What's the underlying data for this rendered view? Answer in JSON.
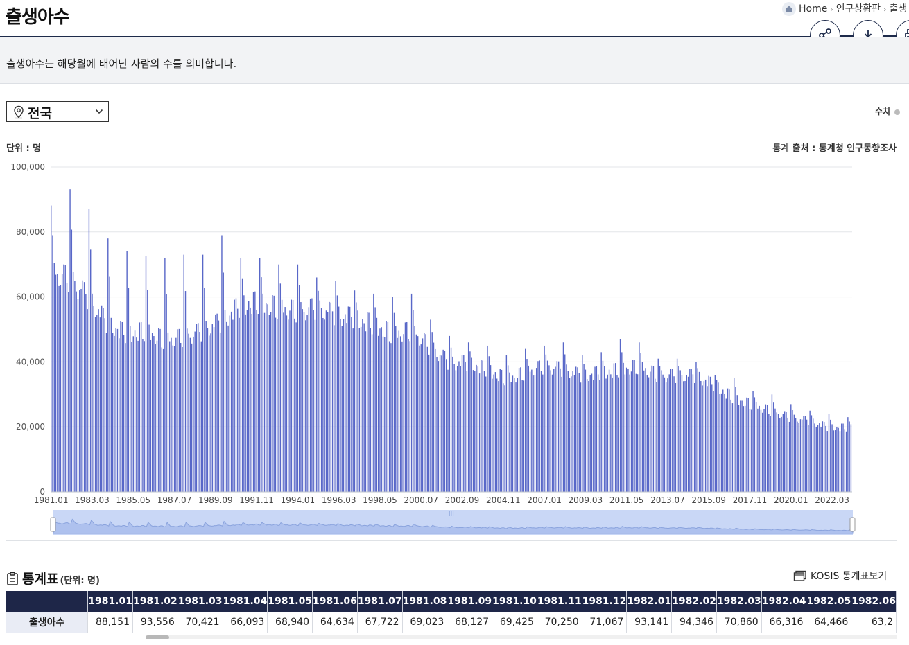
{
  "header": {
    "title": "출생아수",
    "breadcrumb": {
      "home": "Home",
      "level1": "인구상황판",
      "level2": "출생"
    }
  },
  "description": "출생아수는 해당월에 태어난 사람의 수를 의미합니다.",
  "region_select": {
    "value": "전국"
  },
  "view_toggle": {
    "label": "수치"
  },
  "unit_label": "단위 : 명",
  "source_label": "통계 출처 : 통계청 인구동향조사",
  "colors": {
    "bar": "#5867c8",
    "navy": "#1e2648",
    "navigator": "#c9d7f6"
  },
  "chart_data": {
    "type": "bar",
    "x_start": "1981.01",
    "x_end": "2023.03",
    "ylim": [
      0,
      100000
    ],
    "ytick_labels": [
      "0",
      "20,000",
      "40,000",
      "60,000",
      "80,000",
      "100,000"
    ],
    "xtick_labels": [
      "1981.01",
      "1983.03",
      "1985.05",
      "1987.07",
      "1989.09",
      "1991.11",
      "1994.01",
      "1996.03",
      "1998.05",
      "2000.07",
      "2002.09",
      "2004.11",
      "2007.01",
      "2009.03",
      "2011.05",
      "2013.07",
      "2015.09",
      "2017.11",
      "2020.01",
      "2022.03"
    ],
    "annual_anchor_values": {
      "years": [
        1981,
        1982,
        1983,
        1984,
        1985,
        1986,
        1987,
        1988,
        1989,
        1990,
        1991,
        1992,
        1993,
        1994,
        1995,
        1996,
        1997,
        1998,
        1999,
        2000,
        2001,
        2002,
        2003,
        2004,
        2005,
        2006,
        2007,
        2008,
        2009,
        2010,
        2011,
        2012,
        2013,
        2014,
        2015,
        2016,
        2017,
        2018,
        2019,
        2020,
        2021,
        2022,
        2023
      ],
      "january_peak": [
        88151,
        93141,
        87000,
        78000,
        74000,
        72500,
        72000,
        73000,
        73000,
        79000,
        72000,
        72000,
        70000,
        70000,
        66000,
        65000,
        62000,
        61000,
        60000,
        61000,
        53000,
        48000,
        46000,
        45000,
        42000,
        44000,
        45000,
        46000,
        42000,
        43000,
        47000,
        46000,
        41000,
        41000,
        40000,
        36000,
        35000,
        31000,
        30000,
        27000,
        25000,
        24000,
        23000
      ],
      "typical_month": [
        68000,
        66000,
        60000,
        52000,
        49000,
        50000,
        47000,
        48000,
        50000,
        53000,
        58000,
        59000,
        57000,
        56000,
        57000,
        55000,
        54000,
        52000,
        49000,
        50000,
        45000,
        40000,
        40000,
        38000,
        35000,
        37000,
        39000,
        38000,
        36000,
        37000,
        38000,
        39000,
        36000,
        36000,
        36000,
        33000,
        29000,
        27000,
        25000,
        23000,
        22000,
        20000,
        20000
      ]
    }
  },
  "table": {
    "title": "통계표",
    "unit": "(단위: 명)",
    "kosis_link": "KOSIS 통계표보기",
    "row_label": "출생아수",
    "periods": [
      "1981.01",
      "1981.02",
      "1981.03",
      "1981.04",
      "1981.05",
      "1981.06",
      "1981.07",
      "1981.08",
      "1981.09",
      "1981.10",
      "1981.11",
      "1981.12",
      "1982.01",
      "1982.02",
      "1982.03",
      "1982.04",
      "1982.05",
      "1982.06"
    ],
    "values": [
      "88,151",
      "93,556",
      "70,421",
      "66,093",
      "68,940",
      "64,634",
      "67,722",
      "69,023",
      "68,127",
      "69,425",
      "70,250",
      "71,067",
      "93,141",
      "94,346",
      "70,860",
      "66,316",
      "64,466",
      "63,2"
    ]
  }
}
